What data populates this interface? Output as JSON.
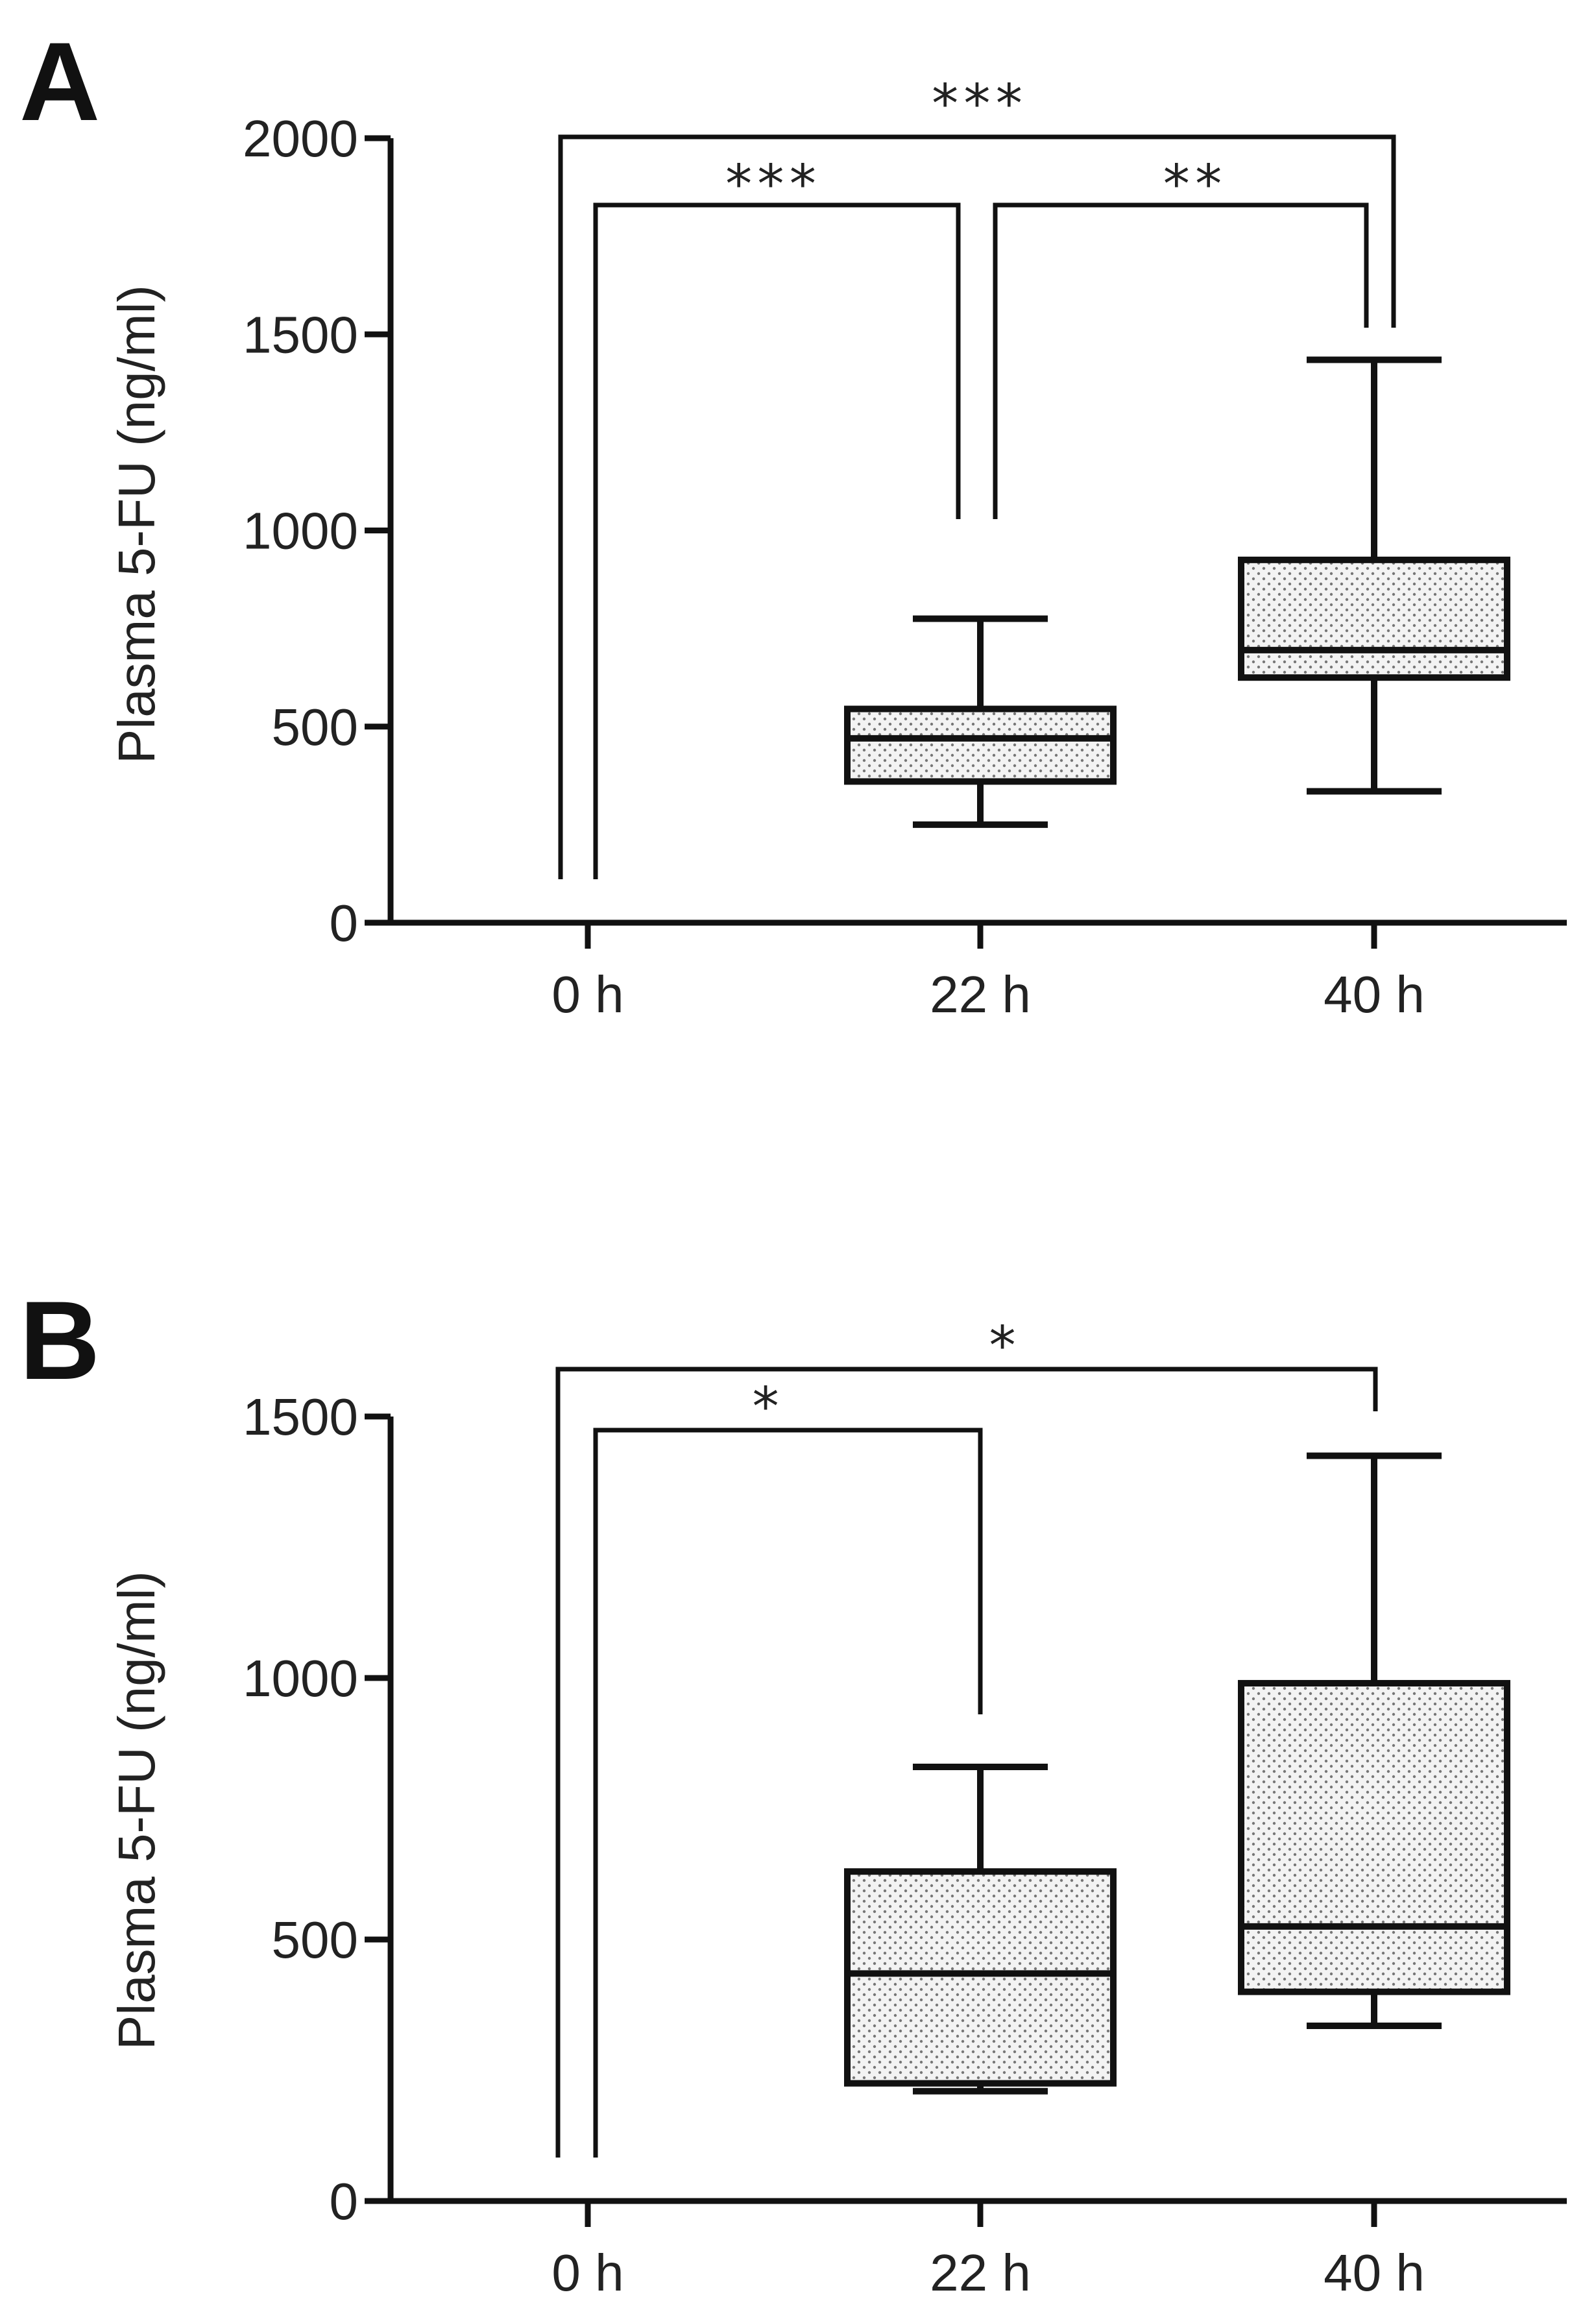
{
  "chart_data": [
    {
      "type": "box",
      "panel_label": "A",
      "ylabel": "Plasma 5-FU (ng/ml)",
      "ylim": [
        0,
        2000
      ],
      "yticks": [
        0,
        500,
        1000,
        1500,
        2000
      ],
      "categories": [
        "0 h",
        "22 h",
        "40 h"
      ],
      "boxes": [
        null,
        {
          "min": 250,
          "q1": 360,
          "median": 470,
          "q3": 545,
          "max": 775
        },
        {
          "min": 335,
          "q1": 625,
          "median": 695,
          "q3": 925,
          "max": 1435
        }
      ],
      "significance": [
        {
          "from": "0 h",
          "to": "40 h",
          "label": "***"
        },
        {
          "from": "0 h",
          "to": "22 h",
          "label": "***"
        },
        {
          "from": "22 h",
          "to": "40 h",
          "label": "**"
        }
      ],
      "colors": {
        "box_fill": "#f0f0f0",
        "stroke": "#111111"
      }
    },
    {
      "type": "box",
      "panel_label": "B",
      "ylabel": "Plasma 5-FU (ng/ml)",
      "ylim": [
        0,
        1500
      ],
      "yticks": [
        0,
        500,
        1000,
        1500
      ],
      "categories": [
        "0 h",
        "22 h",
        "40 h"
      ],
      "boxes": [
        null,
        {
          "min": 210,
          "q1": 225,
          "median": 435,
          "q3": 630,
          "max": 830
        },
        {
          "min": 335,
          "q1": 400,
          "median": 525,
          "q3": 990,
          "max": 1425
        }
      ],
      "significance": [
        {
          "from": "0 h",
          "to": "40 h",
          "label": "*"
        },
        {
          "from": "0 h",
          "to": "22 h",
          "label": "*"
        }
      ],
      "colors": {
        "box_fill": "#f0f0f0",
        "stroke": "#111111"
      }
    }
  ]
}
